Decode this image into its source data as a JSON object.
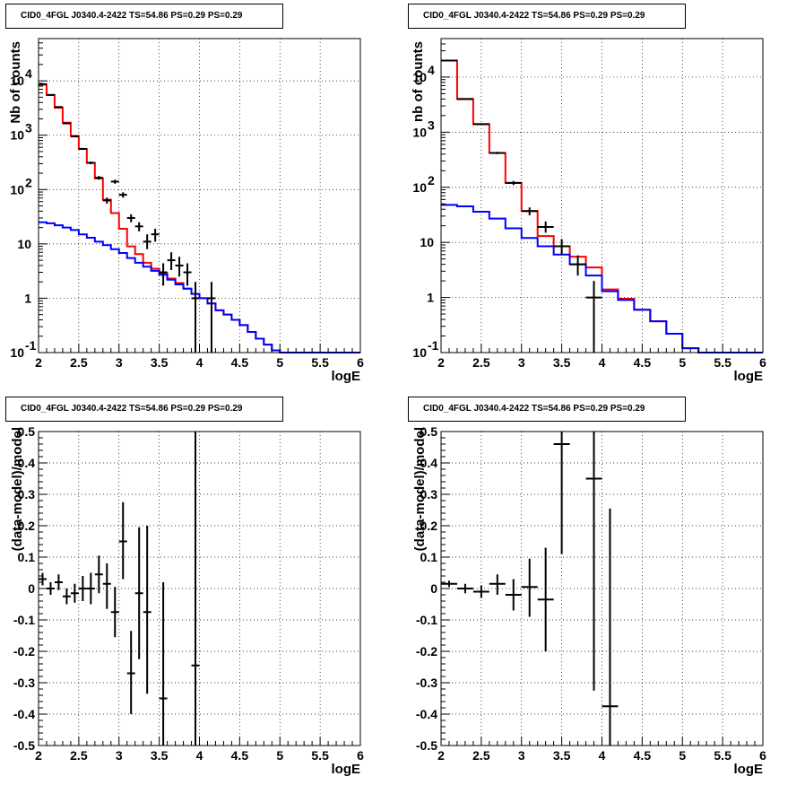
{
  "chart_data": [
    {
      "id": "pad1",
      "type": "histogram",
      "title": "CID0_4FGL J0340.4-2422 TS=54.86 PS=0.29 PS=0.29",
      "xlabel": "logE",
      "ylabel": "Nb of counts",
      "xlim": [
        2,
        6
      ],
      "ylim": [
        0.1,
        60000
      ],
      "ylog": true,
      "grid": true,
      "x_ticks": [
        "2",
        "2.5",
        "3",
        "3.5",
        "4",
        "4.5",
        "5",
        "5.5",
        "6"
      ],
      "y_ticks": [
        {
          "v": 0.1,
          "base": "10",
          "exp": "-1"
        },
        {
          "v": 1,
          "base": "1",
          "exp": ""
        },
        {
          "v": 10,
          "base": "10",
          "exp": ""
        },
        {
          "v": 100,
          "base": "10",
          "exp": "2"
        },
        {
          "v": 1000,
          "base": "10",
          "exp": "3"
        },
        {
          "v": 10000,
          "base": "10",
          "exp": "4"
        }
      ],
      "bin_edges": [
        2.0,
        2.1,
        2.2,
        2.3,
        2.4,
        2.5,
        2.6,
        2.7,
        2.8,
        2.9,
        3.0,
        3.1,
        3.2,
        3.3,
        3.4,
        3.5,
        3.6,
        3.7,
        3.8,
        3.9,
        4.0,
        4.1,
        4.2,
        4.3,
        4.4,
        4.5,
        4.6,
        4.7,
        4.8,
        4.9,
        5.0,
        5.1,
        5.2,
        5.3,
        5.4,
        5.5,
        5.6,
        5.7,
        5.8,
        5.9,
        6.0
      ],
      "series": [
        {
          "kind": "step",
          "color": "#ff0000",
          "values": [
            8500,
            5500,
            3200,
            1700,
            970,
            560,
            310,
            160,
            65,
            37,
            19,
            9,
            6.5,
            4.5,
            3.5,
            2.9,
            2.3,
            1.9,
            1.5,
            1.2,
            1.0,
            0.8,
            0.6,
            0.5,
            0.4,
            0.32,
            0.24,
            0.18,
            0.14,
            0.11,
            0.1,
            0.1,
            0.1,
            0.1,
            0.1,
            0.1,
            0.1,
            0.1,
            0.1,
            0.1
          ]
        },
        {
          "kind": "step",
          "color": "#0000ff",
          "values": [
            25,
            24,
            22,
            20,
            18,
            15,
            13,
            11,
            9.5,
            8,
            6.8,
            5.5,
            4.5,
            3.8,
            3.2,
            2.7,
            2.2,
            1.8,
            1.5,
            1.2,
            1.0,
            0.8,
            0.6,
            0.5,
            0.4,
            0.32,
            0.24,
            0.18,
            0.14,
            0.11,
            0.1,
            0.1,
            0.1,
            0.1,
            0.1,
            0.1,
            0.1,
            0.1,
            0.1,
            0.1
          ]
        },
        {
          "kind": "points",
          "color": "#000000",
          "points": [
            {
              "x": 2.05,
              "y": 8700,
              "lo": 8600,
              "hi": 8800
            },
            {
              "x": 2.15,
              "y": 5500,
              "lo": 5420,
              "hi": 5580
            },
            {
              "x": 2.25,
              "y": 3300,
              "lo": 3240,
              "hi": 3360
            },
            {
              "x": 2.35,
              "y": 1650,
              "lo": 1610,
              "hi": 1690
            },
            {
              "x": 2.45,
              "y": 950,
              "lo": 920,
              "hi": 980
            },
            {
              "x": 2.55,
              "y": 560,
              "lo": 536,
              "hi": 584
            },
            {
              "x": 2.65,
              "y": 310,
              "lo": 292,
              "hi": 328
            },
            {
              "x": 2.75,
              "y": 165,
              "lo": 152,
              "hi": 178
            },
            {
              "x": 2.85,
              "y": 63,
              "lo": 55,
              "hi": 71
            },
            {
              "x": 2.95,
              "y": 140,
              "lo": 128,
              "hi": 152
            },
            {
              "x": 3.05,
              "y": 80,
              "lo": 71,
              "hi": 89
            },
            {
              "x": 3.15,
              "y": 30,
              "lo": 25,
              "hi": 35
            },
            {
              "x": 3.25,
              "y": 21,
              "lo": 17,
              "hi": 25
            },
            {
              "x": 3.35,
              "y": 11,
              "lo": 8,
              "hi": 15
            },
            {
              "x": 3.45,
              "y": 15,
              "lo": 11,
              "hi": 19
            },
            {
              "x": 3.55,
              "y": 3,
              "lo": 1.7,
              "hi": 4.4
            },
            {
              "x": 3.65,
              "y": 5,
              "lo": 3.3,
              "hi": 7
            },
            {
              "x": 3.75,
              "y": 4,
              "lo": 2.5,
              "hi": 5.8
            },
            {
              "x": 3.85,
              "y": 3,
              "lo": 1.7,
              "hi": 4.4
            },
            {
              "x": 3.95,
              "y": 1,
              "lo": 0.1,
              "hi": 2
            },
            {
              "x": 4.15,
              "y": 1,
              "lo": 0.1,
              "hi": 2
            }
          ]
        }
      ]
    },
    {
      "id": "pad2",
      "type": "histogram",
      "title": "CID0_4FGL J0340.4-2422 TS=54.86 PS=0.29 PS=0.29",
      "xlabel": "logE",
      "ylabel": "nb of counts",
      "xlim": [
        2,
        6
      ],
      "ylim": [
        0.1,
        50000
      ],
      "ylog": true,
      "grid": true,
      "x_ticks": [
        "2",
        "2.5",
        "3",
        "3.5",
        "4",
        "4.5",
        "5",
        "5.5",
        "6"
      ],
      "y_ticks": [
        {
          "v": 0.1,
          "base": "10",
          "exp": "-1"
        },
        {
          "v": 1,
          "base": "1",
          "exp": ""
        },
        {
          "v": 10,
          "base": "10",
          "exp": ""
        },
        {
          "v": 100,
          "base": "10",
          "exp": "2"
        },
        {
          "v": 1000,
          "base": "10",
          "exp": "3"
        },
        {
          "v": 10000,
          "base": "10",
          "exp": "4"
        }
      ],
      "bin_edges": [
        2.0,
        2.2,
        2.4,
        2.6,
        2.8,
        3.0,
        3.2,
        3.4,
        3.6,
        3.8,
        4.0,
        4.2,
        4.4,
        4.6,
        4.8,
        5.0,
        5.2,
        5.4,
        5.6,
        5.8,
        6.0
      ],
      "series": [
        {
          "kind": "step",
          "color": "#ff0000",
          "values": [
            20000,
            4000,
            1400,
            420,
            120,
            37,
            13,
            8.5,
            5.5,
            3.5,
            1.4,
            0.95,
            0.6,
            0.37,
            0.22,
            0.12,
            0.1,
            0.1,
            0.1,
            0.1
          ]
        },
        {
          "kind": "step",
          "color": "#0000ff",
          "values": [
            48,
            45,
            36,
            27,
            18,
            12,
            8.5,
            6,
            4,
            2.5,
            1.3,
            0.9,
            0.6,
            0.37,
            0.22,
            0.12,
            0.1,
            0.1,
            0.1,
            0.1
          ]
        },
        {
          "kind": "points",
          "color": "#000000",
          "points": [
            {
              "x": 2.1,
              "y": 20000,
              "lo": 19800,
              "hi": 20200
            },
            {
              "x": 2.3,
              "y": 4000,
              "lo": 3930,
              "hi": 4070
            },
            {
              "x": 2.5,
              "y": 1400,
              "lo": 1360,
              "hi": 1440
            },
            {
              "x": 2.7,
              "y": 420,
              "lo": 400,
              "hi": 440
            },
            {
              "x": 2.9,
              "y": 120,
              "lo": 110,
              "hi": 130
            },
            {
              "x": 3.1,
              "y": 37,
              "lo": 31,
              "hi": 43
            },
            {
              "x": 3.3,
              "y": 19,
              "lo": 15,
              "hi": 24
            },
            {
              "x": 3.5,
              "y": 8.5,
              "lo": 6,
              "hi": 11.5
            },
            {
              "x": 3.7,
              "y": 4,
              "lo": 2.5,
              "hi": 5.8
            },
            {
              "x": 3.9,
              "y": 1,
              "lo": 0.1,
              "hi": 2
            }
          ]
        }
      ]
    },
    {
      "id": "pad3",
      "type": "scatter",
      "title": "CID0_4FGL J0340.4-2422 TS=54.86 PS=0.29 PS=0.29",
      "xlabel": "logE",
      "ylabel": "(data-model)/model",
      "xlim": [
        2,
        6
      ],
      "ylim": [
        -0.5,
        0.5
      ],
      "ylog": false,
      "grid": true,
      "x_ticks": [
        "2",
        "2.5",
        "3",
        "3.5",
        "4",
        "4.5",
        "5",
        "5.5",
        "6"
      ],
      "y_ticks": [
        "-0.5",
        "-0.4",
        "-0.3",
        "-0.2",
        "-0.1",
        "0",
        "0.1",
        "0.2",
        "0.3",
        "0.4",
        "0.5"
      ],
      "bin_halfwidth": 0.05,
      "series": [
        {
          "kind": "points",
          "color": "#000000",
          "points": [
            {
              "x": 2.05,
              "y": 0.03,
              "lo": 0.01,
              "hi": 0.05
            },
            {
              "x": 2.15,
              "y": 0.0,
              "lo": -0.02,
              "hi": 0.02
            },
            {
              "x": 2.25,
              "y": 0.02,
              "lo": -0.005,
              "hi": 0.045
            },
            {
              "x": 2.35,
              "y": -0.025,
              "lo": -0.05,
              "hi": 0.0
            },
            {
              "x": 2.45,
              "y": -0.015,
              "lo": -0.045,
              "hi": 0.015
            },
            {
              "x": 2.55,
              "y": 0.0,
              "lo": -0.04,
              "hi": 0.04
            },
            {
              "x": 2.65,
              "y": 0.0,
              "lo": -0.05,
              "hi": 0.05
            },
            {
              "x": 2.75,
              "y": 0.045,
              "lo": -0.015,
              "hi": 0.105
            },
            {
              "x": 2.85,
              "y": 0.015,
              "lo": -0.065,
              "hi": 0.08
            },
            {
              "x": 2.95,
              "y": -0.075,
              "lo": -0.155,
              "hi": 0.005
            },
            {
              "x": 3.05,
              "y": 0.15,
              "lo": 0.03,
              "hi": 0.275
            },
            {
              "x": 3.15,
              "y": -0.27,
              "lo": -0.4,
              "hi": -0.135
            },
            {
              "x": 3.25,
              "y": -0.015,
              "lo": -0.225,
              "hi": 0.195
            },
            {
              "x": 3.35,
              "y": -0.075,
              "lo": -0.335,
              "hi": 0.2
            },
            {
              "x": 3.55,
              "y": -0.35,
              "lo": -0.5,
              "hi": 0.02
            },
            {
              "x": 3.95,
              "y": -0.245,
              "lo": -0.5,
              "hi": 0.5
            }
          ]
        }
      ]
    },
    {
      "id": "pad4",
      "type": "scatter",
      "title": "CID0_4FGL J0340.4-2422 TS=54.86 PS=0.29 PS=0.29",
      "xlabel": "logE",
      "ylabel": "(data-model)/model",
      "xlim": [
        2,
        6
      ],
      "ylim": [
        -0.5,
        0.5
      ],
      "ylog": false,
      "grid": true,
      "x_ticks": [
        "2",
        "2.5",
        "3",
        "3.5",
        "4",
        "4.5",
        "5",
        "5.5",
        "6"
      ],
      "y_ticks": [
        "-0.5",
        "-0.4",
        "-0.3",
        "-0.2",
        "-0.1",
        "0",
        "0.1",
        "0.2",
        "0.3",
        "0.4",
        "0.5"
      ],
      "bin_halfwidth": 0.1,
      "series": [
        {
          "kind": "points",
          "color": "#000000",
          "points": [
            {
              "x": 2.1,
              "y": 0.015,
              "lo": 0.005,
              "hi": 0.025
            },
            {
              "x": 2.3,
              "y": 0.0,
              "lo": -0.015,
              "hi": 0.015
            },
            {
              "x": 2.5,
              "y": -0.01,
              "lo": -0.03,
              "hi": 0.01
            },
            {
              "x": 2.7,
              "y": 0.015,
              "lo": -0.02,
              "hi": 0.045
            },
            {
              "x": 2.9,
              "y": -0.02,
              "lo": -0.07,
              "hi": 0.03
            },
            {
              "x": 3.1,
              "y": 0.005,
              "lo": -0.09,
              "hi": 0.095
            },
            {
              "x": 3.3,
              "y": -0.035,
              "lo": -0.2,
              "hi": 0.13
            },
            {
              "x": 3.5,
              "y": 0.46,
              "lo": 0.11,
              "hi": 0.5
            },
            {
              "x": 3.9,
              "y": 0.35,
              "lo": -0.325,
              "hi": 0.5
            },
            {
              "x": 4.1,
              "y": -0.375,
              "lo": -0.5,
              "hi": 0.255
            }
          ]
        }
      ]
    }
  ]
}
